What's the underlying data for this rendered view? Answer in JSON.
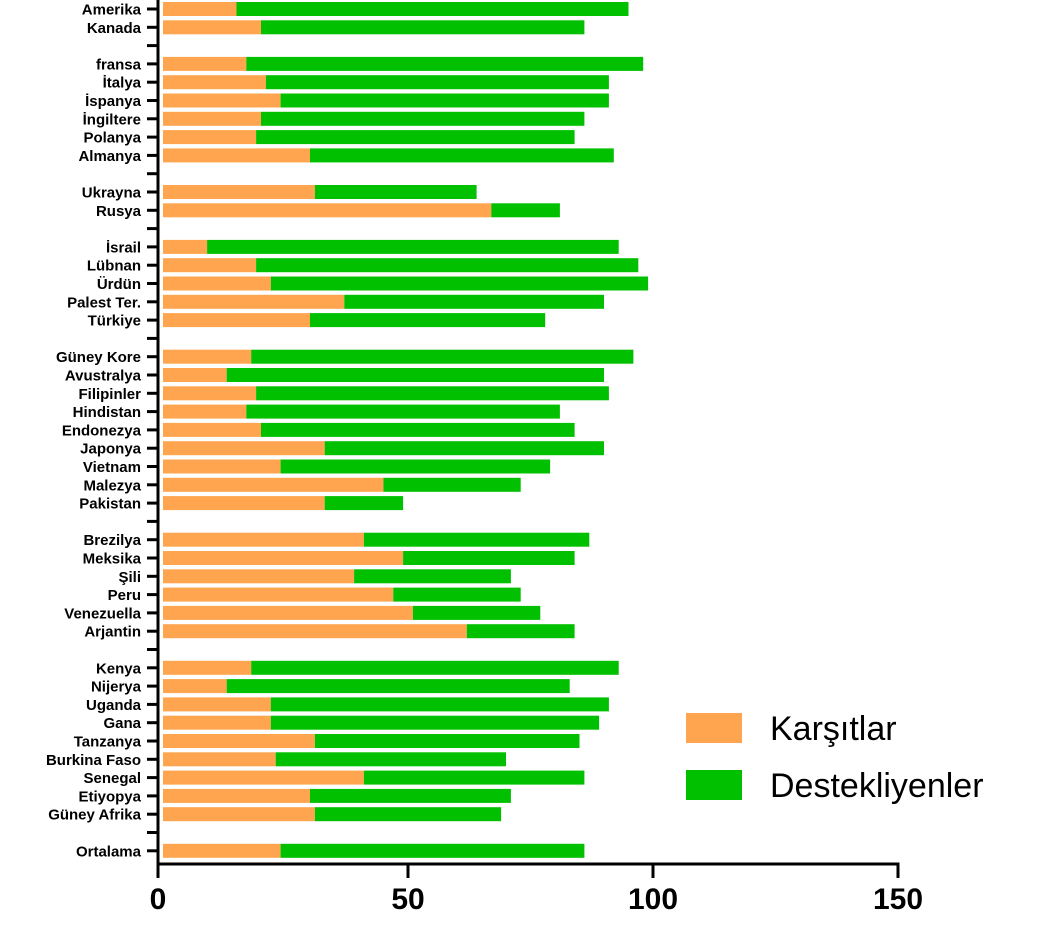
{
  "chart_data": {
    "type": "bar",
    "orientation": "horizontal",
    "stacked": true,
    "legend_position": "bottom-right",
    "grid": false,
    "xlim": [
      0,
      150
    ],
    "x_ticks": [
      0,
      50,
      100,
      150
    ],
    "rows": [
      {
        "label": "Amerika",
        "values": [
          15,
          80
        ]
      },
      {
        "label": "Kanada",
        "values": [
          20,
          66
        ]
      },
      null,
      {
        "label": "fransa",
        "values": [
          17,
          81
        ]
      },
      {
        "label": "İtalya",
        "values": [
          21,
          70
        ]
      },
      {
        "label": "İspanya",
        "values": [
          24,
          67
        ]
      },
      {
        "label": "İngiltere",
        "values": [
          20,
          66
        ]
      },
      {
        "label": "Polanya",
        "values": [
          19,
          65
        ]
      },
      {
        "label": "Almanya",
        "values": [
          30,
          62
        ]
      },
      null,
      {
        "label": "Ukrayna",
        "values": [
          31,
          33
        ]
      },
      {
        "label": "Rusya",
        "values": [
          67,
          14
        ]
      },
      null,
      {
        "label": "İsrail",
        "values": [
          9,
          84
        ]
      },
      {
        "label": "Lübnan",
        "values": [
          19,
          78
        ]
      },
      {
        "label": "Ürdün",
        "values": [
          22,
          77
        ]
      },
      {
        "label": "Palest Ter.",
        "values": [
          37,
          53
        ]
      },
      {
        "label": "Türkiye",
        "values": [
          30,
          48
        ]
      },
      null,
      {
        "label": "Güney Kore",
        "values": [
          18,
          78
        ]
      },
      {
        "label": "Avustralya",
        "values": [
          13,
          77
        ]
      },
      {
        "label": "Filipinler",
        "values": [
          19,
          72
        ]
      },
      {
        "label": "Hindistan",
        "values": [
          17,
          64
        ]
      },
      {
        "label": "Endonezya",
        "values": [
          20,
          64
        ]
      },
      {
        "label": "Japonya",
        "values": [
          33,
          57
        ]
      },
      {
        "label": "Vietnam",
        "values": [
          24,
          55
        ]
      },
      {
        "label": "Malezya",
        "values": [
          45,
          28
        ]
      },
      {
        "label": "Pakistan",
        "values": [
          33,
          16
        ]
      },
      null,
      {
        "label": "Brezilya",
        "values": [
          41,
          46
        ]
      },
      {
        "label": "Meksika",
        "values": [
          49,
          35
        ]
      },
      {
        "label": "Şili",
        "values": [
          39,
          32
        ]
      },
      {
        "label": "Peru",
        "values": [
          47,
          26
        ]
      },
      {
        "label": "Venezuella",
        "values": [
          51,
          26
        ]
      },
      {
        "label": "Arjantin",
        "values": [
          62,
          22
        ]
      },
      null,
      {
        "label": "Kenya",
        "values": [
          18,
          75
        ]
      },
      {
        "label": "Nijerya",
        "values": [
          13,
          70
        ]
      },
      {
        "label": "Uganda",
        "values": [
          22,
          69
        ]
      },
      {
        "label": "Gana",
        "values": [
          22,
          67
        ]
      },
      {
        "label": "Tanzanya",
        "values": [
          31,
          54
        ]
      },
      {
        "label": "Burkina Faso",
        "values": [
          23,
          47
        ]
      },
      {
        "label": "Senegal",
        "values": [
          41,
          45
        ]
      },
      {
        "label": "Etiyopya",
        "values": [
          30,
          41
        ]
      },
      {
        "label": "Güney Afrika",
        "values": [
          31,
          38
        ]
      },
      null,
      {
        "label": "Ortalama",
        "values": [
          24,
          62
        ]
      }
    ],
    "series": [
      {
        "name": "Karşıtlar",
        "color": "#FFA54F"
      },
      {
        "name": "Destekliyenler",
        "color": "#00C000"
      }
    ]
  }
}
